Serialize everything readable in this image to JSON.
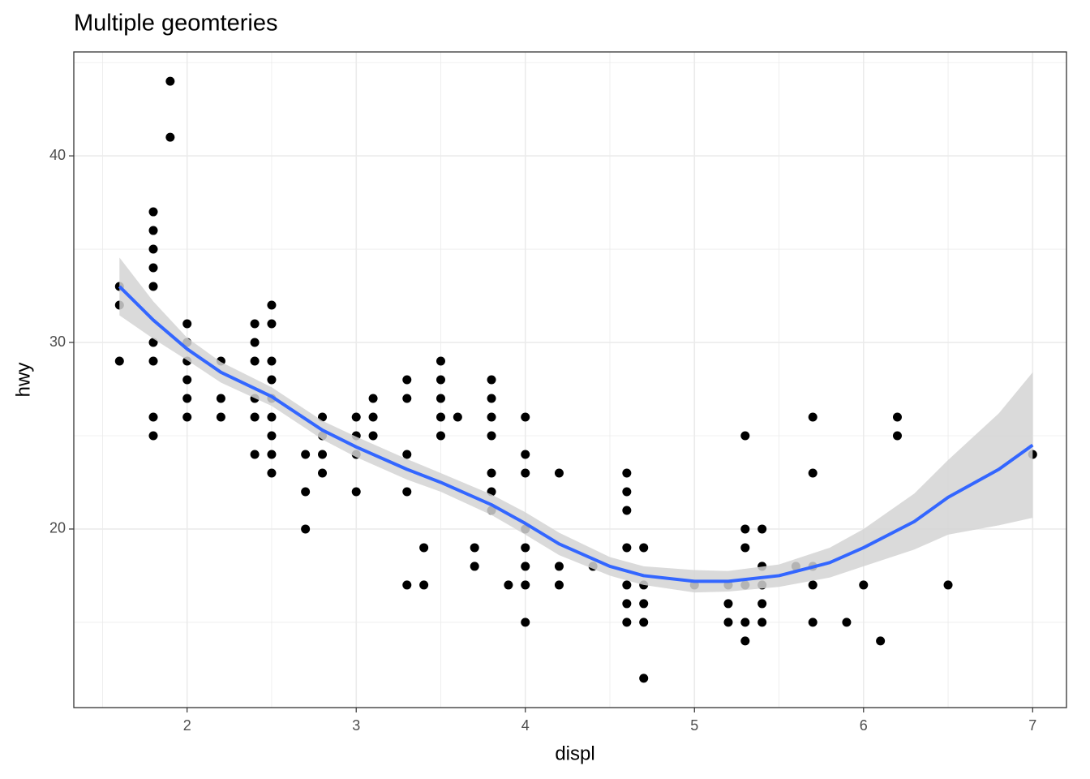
{
  "chart_data": {
    "type": "scatter",
    "title": "Multiple geomteries",
    "x_label": "displ",
    "y_label": "hwy",
    "xlim": [
      1.33,
      7.2
    ],
    "ylim": [
      10.43,
      45.57
    ],
    "xticks": [
      2,
      3,
      4,
      5,
      6,
      7
    ],
    "yticks": [
      20,
      30,
      40
    ],
    "x_minor_grid": [
      1.5,
      2.5,
      3.5,
      4.5,
      5.5,
      6.5
    ],
    "y_minor_grid": [
      15,
      25,
      35,
      45
    ],
    "grid": true,
    "points": {
      "color": "#000000",
      "x": [
        1.6,
        1.6,
        1.6,
        1.8,
        1.8,
        1.8,
        1.8,
        1.8,
        1.8,
        1.8,
        1.8,
        1.8,
        1.9,
        1.9,
        2,
        2,
        2,
        2,
        2,
        2,
        2.2,
        2.2,
        2.2,
        2.4,
        2.4,
        2.4,
        2.4,
        2.4,
        2.4,
        2.5,
        2.5,
        2.5,
        2.5,
        2.5,
        2.5,
        2.5,
        2.5,
        2.5,
        2.7,
        2.7,
        2.7,
        2.8,
        2.8,
        2.8,
        2.8,
        3,
        3,
        3,
        3,
        3.1,
        3.1,
        3.1,
        3.3,
        3.3,
        3.3,
        3.3,
        3.3,
        3.4,
        3.4,
        3.5,
        3.5,
        3.5,
        3.5,
        3.5,
        3.6,
        3.7,
        3.7,
        3.8,
        3.8,
        3.8,
        3.8,
        3.8,
        3.8,
        3.8,
        3.9,
        4,
        4,
        4,
        4,
        4,
        4,
        4,
        4,
        4.2,
        4.2,
        4.2,
        4.4,
        4.6,
        4.6,
        4.6,
        4.6,
        4.6,
        4.6,
        4.6,
        4.7,
        4.7,
        4.7,
        4.7,
        4.7,
        5,
        5.2,
        5.2,
        5.2,
        5.3,
        5.3,
        5.3,
        5.3,
        5.3,
        5.3,
        5.4,
        5.4,
        5.4,
        5.4,
        5.4,
        5.6,
        5.7,
        5.7,
        5.7,
        5.7,
        5.7,
        5.9,
        6,
        6.1,
        6.2,
        6.2,
        6.5,
        7
      ],
      "y": [
        33,
        32,
        29,
        37,
        36,
        35,
        34,
        33,
        30,
        29,
        26,
        25,
        44,
        41,
        31,
        30,
        29,
        28,
        27,
        26,
        29,
        27,
        26,
        31,
        30,
        29,
        27,
        26,
        24,
        32,
        31,
        29,
        28,
        27,
        26,
        25,
        24,
        23,
        24,
        22,
        20,
        26,
        25,
        24,
        23,
        26,
        25,
        24,
        22,
        27,
        26,
        25,
        28,
        27,
        24,
        22,
        17,
        19,
        17,
        29,
        28,
        27,
        26,
        25,
        26,
        19,
        18,
        28,
        27,
        26,
        25,
        23,
        22,
        21,
        17,
        26,
        24,
        23,
        20,
        19,
        18,
        17,
        15,
        23,
        18,
        17,
        18,
        23,
        22,
        21,
        19,
        17,
        16,
        15,
        19,
        17,
        16,
        15,
        12,
        17,
        17,
        16,
        15,
        25,
        20,
        19,
        17,
        15,
        14,
        20,
        18,
        17,
        16,
        15,
        18,
        26,
        23,
        18,
        17,
        15,
        15,
        17,
        14,
        26,
        25,
        17,
        24
      ]
    },
    "smooth": {
      "color": "#3366ff",
      "band_color": "#d3d3d3",
      "x": [
        1.6,
        1.8,
        2,
        2.2,
        2.5,
        2.8,
        3,
        3.3,
        3.5,
        3.8,
        4,
        4.2,
        4.5,
        4.7,
        5,
        5.2,
        5.5,
        5.8,
        6,
        6.3,
        6.5,
        6.8,
        7
      ],
      "y": [
        33,
        31.2,
        29.65,
        28.4,
        27.1,
        25.3,
        24.4,
        23.2,
        22.5,
        21.3,
        20.3,
        19.2,
        18.0,
        17.5,
        17.2,
        17.2,
        17.5,
        18.2,
        19.0,
        20.4,
        21.7,
        23.2,
        24.5
      ],
      "lower": [
        31.45,
        30.2,
        29.05,
        27.85,
        26.6,
        24.8,
        23.85,
        22.65,
        22.0,
        20.75,
        19.7,
        18.6,
        17.5,
        17.0,
        16.6,
        16.65,
        16.9,
        17.4,
        18.0,
        18.9,
        19.7,
        20.2,
        20.6
      ],
      "upper": [
        34.55,
        32.2,
        30.25,
        28.95,
        27.6,
        25.8,
        24.95,
        23.75,
        23.0,
        21.85,
        20.9,
        19.8,
        18.5,
        18.0,
        17.8,
        17.75,
        18.1,
        19.0,
        20.0,
        21.9,
        23.7,
        26.2,
        28.4
      ]
    }
  }
}
